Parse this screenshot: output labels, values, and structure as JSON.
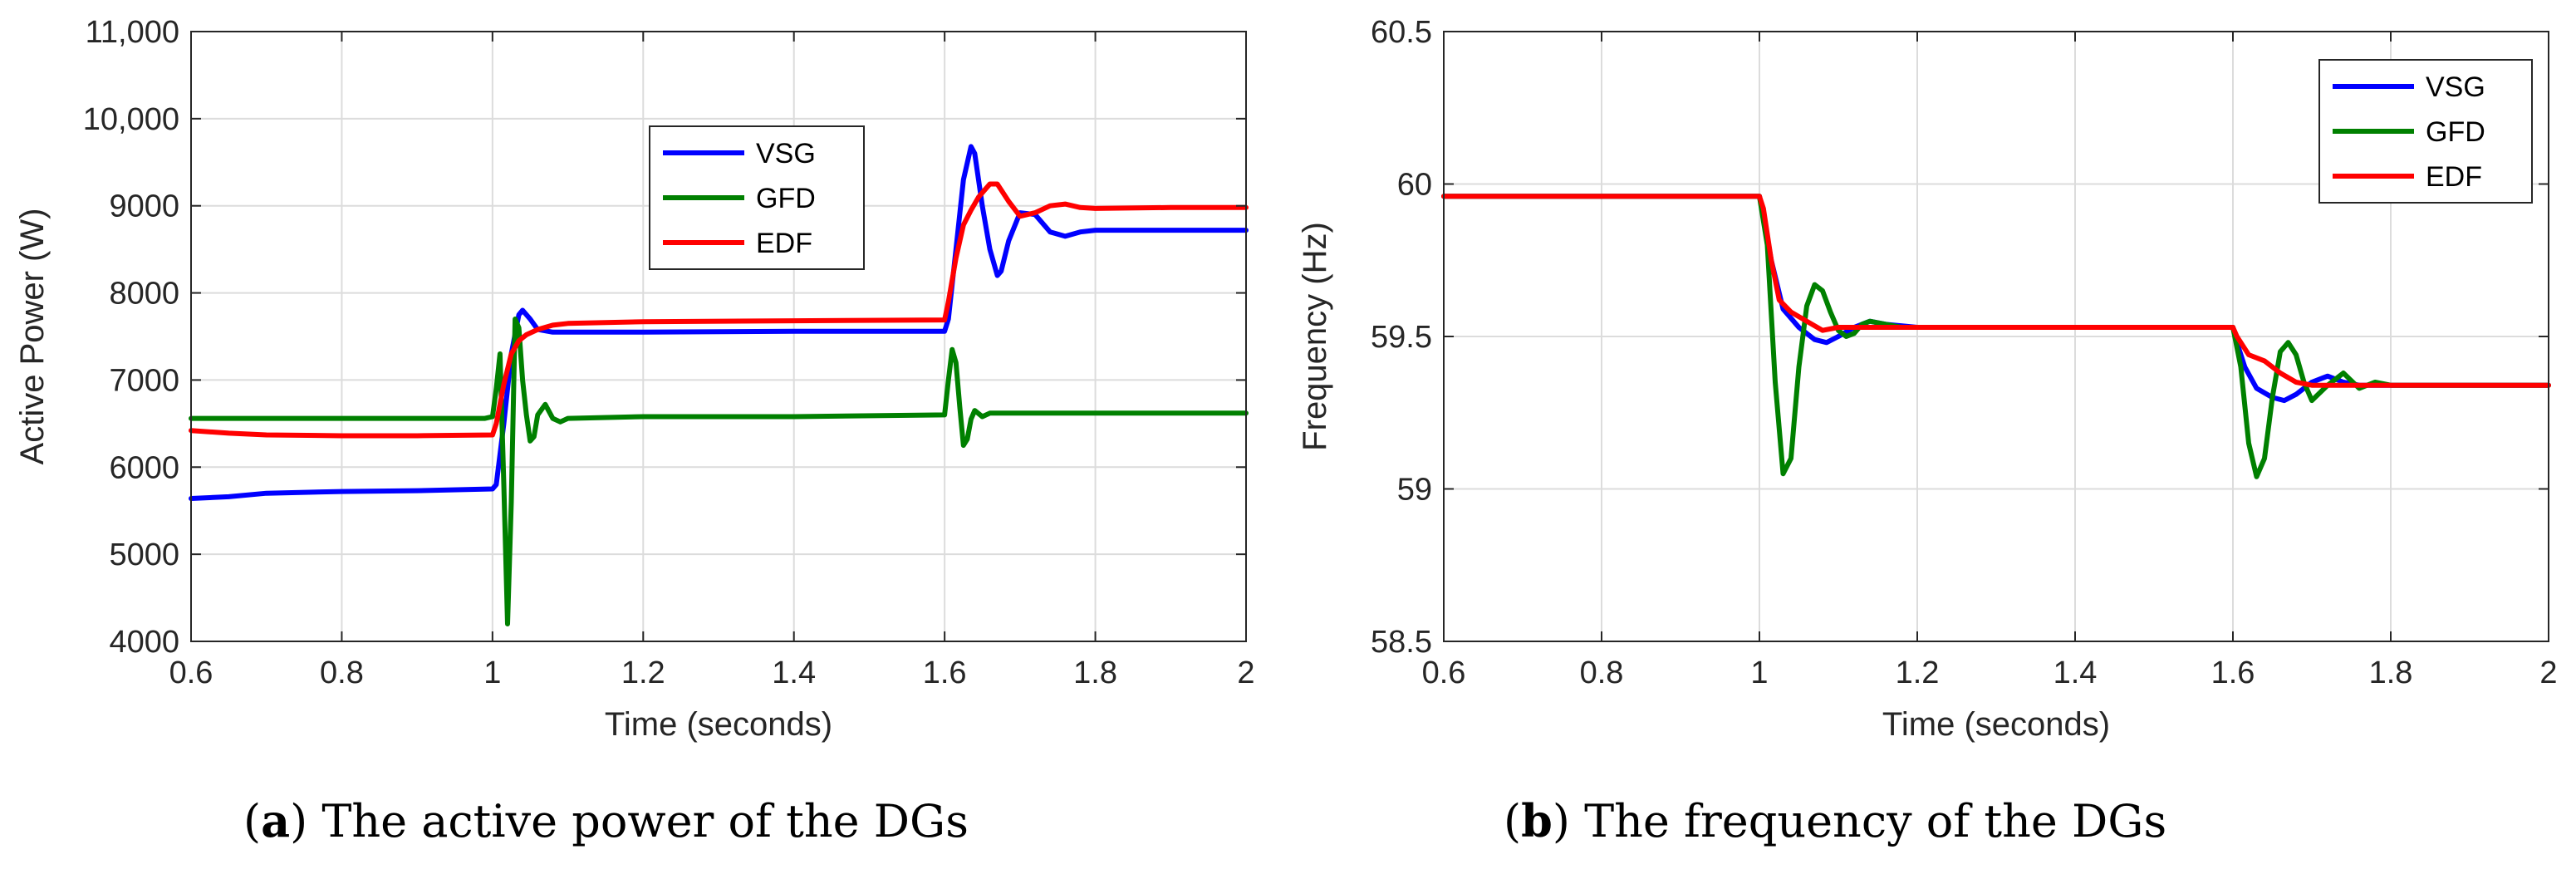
{
  "chart_data": [
    {
      "type": "line",
      "panel_label": "a",
      "caption": "The active power of the DGs",
      "xlabel": "Time (seconds)",
      "ylabel": "Active Power (W)",
      "xlim": [
        0.6,
        2
      ],
      "ylim": [
        4000,
        11000
      ],
      "xticks": [
        0.6,
        0.8,
        1,
        1.2,
        1.4,
        1.6,
        1.8,
        2
      ],
      "xtick_labels": [
        "0.6",
        "0.8",
        "1",
        "1.2",
        "1.4",
        "1.6",
        "1.8",
        "2"
      ],
      "yticks": [
        4000,
        5000,
        6000,
        7000,
        8000,
        9000,
        10000,
        11000
      ],
      "ytick_labels": [
        "4000",
        "5000",
        "6000",
        "7000",
        "8000",
        "9000",
        "10,000",
        "11,000"
      ],
      "grid": true,
      "legend_position": "upper-center",
      "series": [
        {
          "name": "VSG",
          "color": "#0000ff",
          "x": [
            0.6,
            0.65,
            0.7,
            0.8,
            0.9,
            1.0,
            1.005,
            1.015,
            1.025,
            1.035,
            1.04,
            1.05,
            1.06,
            1.08,
            1.1,
            1.2,
            1.4,
            1.6,
            1.605,
            1.615,
            1.625,
            1.635,
            1.64,
            1.65,
            1.66,
            1.67,
            1.675,
            1.685,
            1.7,
            1.72,
            1.74,
            1.76,
            1.78,
            1.8,
            1.9,
            2.0
          ],
          "y": [
            5640,
            5660,
            5700,
            5720,
            5730,
            5750,
            5800,
            6500,
            7300,
            7750,
            7800,
            7700,
            7580,
            7550,
            7550,
            7550,
            7560,
            7560,
            7700,
            8500,
            9300,
            9680,
            9600,
            9000,
            8500,
            8200,
            8250,
            8600,
            8920,
            8900,
            8700,
            8650,
            8700,
            8720,
            8720,
            8720
          ]
        },
        {
          "name": "GFD",
          "color": "#008000",
          "x": [
            0.6,
            0.8,
            0.99,
            1.0,
            1.005,
            1.01,
            1.015,
            1.02,
            1.025,
            1.03,
            1.035,
            1.04,
            1.045,
            1.05,
            1.055,
            1.06,
            1.07,
            1.08,
            1.09,
            1.1,
            1.2,
            1.4,
            1.6,
            1.605,
            1.61,
            1.615,
            1.62,
            1.625,
            1.63,
            1.635,
            1.64,
            1.65,
            1.66,
            1.68,
            1.7,
            1.8,
            2.0
          ],
          "y": [
            6560,
            6560,
            6560,
            6580,
            6900,
            7300,
            5800,
            4200,
            5600,
            7700,
            7600,
            7000,
            6600,
            6300,
            6350,
            6600,
            6720,
            6560,
            6520,
            6560,
            6580,
            6580,
            6600,
            7000,
            7350,
            7200,
            6700,
            6250,
            6320,
            6550,
            6650,
            6580,
            6620,
            6620,
            6620,
            6620,
            6620
          ]
        },
        {
          "name": "EDF",
          "color": "#ff0000",
          "x": [
            0.6,
            0.65,
            0.7,
            0.8,
            0.9,
            1.0,
            1.005,
            1.015,
            1.025,
            1.035,
            1.045,
            1.06,
            1.08,
            1.1,
            1.15,
            1.2,
            1.4,
            1.6,
            1.605,
            1.615,
            1.625,
            1.635,
            1.645,
            1.66,
            1.67,
            1.685,
            1.7,
            1.72,
            1.74,
            1.76,
            1.78,
            1.8,
            1.9,
            2.0
          ],
          "y": [
            6420,
            6390,
            6370,
            6360,
            6360,
            6370,
            6500,
            6950,
            7300,
            7450,
            7520,
            7580,
            7630,
            7650,
            7660,
            7670,
            7680,
            7690,
            7900,
            8400,
            8780,
            8950,
            9100,
            9250,
            9250,
            9050,
            8880,
            8920,
            9000,
            9020,
            8980,
            8970,
            8980,
            8980
          ]
        }
      ]
    },
    {
      "type": "line",
      "panel_label": "b",
      "caption": "The frequency of the DGs",
      "xlabel": "Time (seconds)",
      "ylabel": "Frequency (Hz)",
      "xlim": [
        0.6,
        2
      ],
      "ylim": [
        58.5,
        60.5
      ],
      "xticks": [
        0.6,
        0.8,
        1,
        1.2,
        1.4,
        1.6,
        1.8,
        2
      ],
      "xtick_labels": [
        "0.6",
        "0.8",
        "1",
        "1.2",
        "1.4",
        "1.6",
        "1.8",
        "2"
      ],
      "yticks": [
        58.5,
        59,
        59.5,
        60,
        60.5
      ],
      "ytick_labels": [
        "58.5",
        "59",
        "59.5",
        "60",
        "60.5"
      ],
      "grid": true,
      "legend_position": "top-right",
      "series": [
        {
          "name": "VSG",
          "color": "#0000ff",
          "x": [
            0.6,
            1.0,
            1.005,
            1.015,
            1.03,
            1.05,
            1.07,
            1.085,
            1.1,
            1.12,
            1.14,
            1.16,
            1.2,
            1.4,
            1.6,
            1.605,
            1.615,
            1.63,
            1.65,
            1.665,
            1.68,
            1.7,
            1.72,
            1.74,
            1.76,
            1.8,
            2.0
          ],
          "y": [
            59.96,
            59.96,
            59.9,
            59.75,
            59.59,
            59.53,
            59.49,
            59.48,
            59.5,
            59.53,
            59.55,
            59.54,
            59.53,
            59.53,
            59.53,
            59.48,
            59.4,
            59.33,
            59.3,
            59.29,
            59.31,
            59.35,
            59.37,
            59.35,
            59.34,
            59.34,
            59.34
          ]
        },
        {
          "name": "GFD",
          "color": "#008000",
          "x": [
            0.6,
            1.0,
            1.01,
            1.02,
            1.03,
            1.04,
            1.05,
            1.06,
            1.07,
            1.08,
            1.09,
            1.1,
            1.11,
            1.12,
            1.13,
            1.14,
            1.16,
            1.18,
            1.2,
            1.4,
            1.6,
            1.61,
            1.62,
            1.63,
            1.64,
            1.65,
            1.66,
            1.67,
            1.68,
            1.69,
            1.7,
            1.72,
            1.74,
            1.76,
            1.78,
            1.8,
            2.0
          ],
          "y": [
            59.96,
            59.96,
            59.8,
            59.35,
            59.05,
            59.1,
            59.4,
            59.6,
            59.67,
            59.65,
            59.58,
            59.52,
            59.5,
            59.51,
            59.54,
            59.55,
            59.54,
            59.53,
            59.53,
            59.53,
            59.53,
            59.4,
            59.15,
            59.04,
            59.1,
            59.3,
            59.45,
            59.48,
            59.44,
            59.35,
            59.29,
            59.34,
            59.38,
            59.33,
            59.35,
            59.34,
            59.34
          ]
        },
        {
          "name": "EDF",
          "color": "#ff0000",
          "x": [
            0.6,
            1.0,
            1.005,
            1.015,
            1.025,
            1.04,
            1.06,
            1.08,
            1.1,
            1.15,
            1.2,
            1.4,
            1.6,
            1.605,
            1.62,
            1.64,
            1.66,
            1.68,
            1.7,
            1.8,
            2.0
          ],
          "y": [
            59.96,
            59.96,
            59.92,
            59.75,
            59.62,
            59.58,
            59.55,
            59.52,
            59.53,
            59.53,
            59.53,
            59.53,
            59.53,
            59.5,
            59.44,
            59.42,
            59.38,
            59.35,
            59.34,
            59.34,
            59.34
          ]
        }
      ]
    }
  ]
}
